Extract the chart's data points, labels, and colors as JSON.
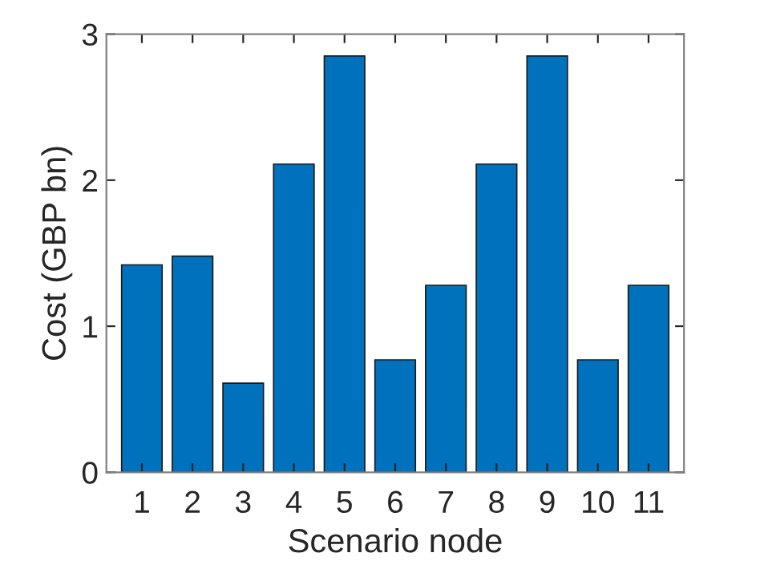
{
  "chart_data": {
    "type": "bar",
    "xlabel": "Scenario node",
    "ylabel": "Cost (GBP bn)",
    "categories": [
      "1",
      "2",
      "3",
      "4",
      "5",
      "6",
      "7",
      "8",
      "9",
      "10",
      "11"
    ],
    "values": [
      1.42,
      1.48,
      0.61,
      2.11,
      2.85,
      0.77,
      1.28,
      2.11,
      2.85,
      0.77,
      1.28
    ],
    "color": "#0072bd",
    "ylim": [
      0,
      3
    ],
    "yticks": [
      0,
      1,
      2,
      3
    ],
    "grid": false,
    "legend": false
  }
}
